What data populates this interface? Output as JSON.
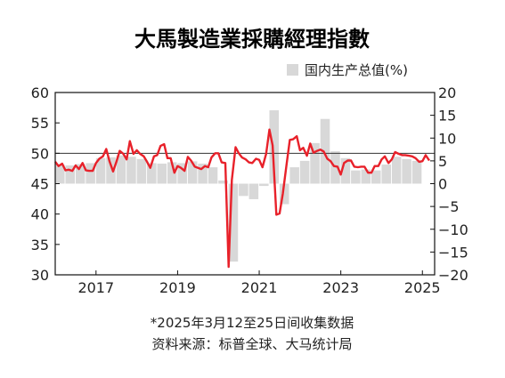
{
  "chart_data": {
    "type": "bar+line",
    "title": "大馬製造業採購經理指數",
    "left_axis": {
      "ylim": [
        30,
        60
      ],
      "ticks": [
        30,
        35,
        40,
        45,
        50,
        55,
        60
      ]
    },
    "right_axis": {
      "ylim": [
        -20,
        20
      ],
      "ticks": [
        -20,
        -15,
        -10,
        -5,
        0,
        5,
        10,
        15,
        20
      ],
      "tick_labels": [
        "−20",
        "−15",
        "−10",
        "−5",
        "0",
        "5",
        "10",
        "15",
        "20"
      ]
    },
    "x_tick_labels": [
      "2017",
      "2019",
      "2021",
      "2023",
      "2025"
    ],
    "x_tick_years": [
      2017,
      2019,
      2021,
      2023,
      2025
    ],
    "x_range": [
      2016.0,
      2025.3
    ],
    "reference_line": {
      "axis": "left",
      "value": 50
    },
    "bar_series": {
      "name": "国内生产总值(%)",
      "color": "#d8d8d8",
      "points": [
        {
          "x": 2016.0,
          "y": 4.2
        },
        {
          "x": 2016.25,
          "y": 4.0
        },
        {
          "x": 2016.5,
          "y": 4.3
        },
        {
          "x": 2016.75,
          "y": 4.5
        },
        {
          "x": 2017.0,
          "y": 5.6
        },
        {
          "x": 2017.25,
          "y": 5.8
        },
        {
          "x": 2017.5,
          "y": 6.2
        },
        {
          "x": 2017.75,
          "y": 5.9
        },
        {
          "x": 2018.0,
          "y": 5.4
        },
        {
          "x": 2018.25,
          "y": 4.5
        },
        {
          "x": 2018.5,
          "y": 4.4
        },
        {
          "x": 2018.75,
          "y": 4.7
        },
        {
          "x": 2019.0,
          "y": 4.5
        },
        {
          "x": 2019.25,
          "y": 4.9
        },
        {
          "x": 2019.5,
          "y": 4.4
        },
        {
          "x": 2019.75,
          "y": 3.6
        },
        {
          "x": 2020.0,
          "y": 0.7
        },
        {
          "x": 2020.25,
          "y": -17.1
        },
        {
          "x": 2020.5,
          "y": -2.7
        },
        {
          "x": 2020.75,
          "y": -3.4
        },
        {
          "x": 2021.0,
          "y": -0.5
        },
        {
          "x": 2021.25,
          "y": 16.1
        },
        {
          "x": 2021.5,
          "y": -4.5
        },
        {
          "x": 2021.75,
          "y": 3.6
        },
        {
          "x": 2022.0,
          "y": 5.0
        },
        {
          "x": 2022.25,
          "y": 8.9
        },
        {
          "x": 2022.5,
          "y": 14.2
        },
        {
          "x": 2022.75,
          "y": 7.1
        },
        {
          "x": 2023.0,
          "y": 5.6
        },
        {
          "x": 2023.25,
          "y": 2.9
        },
        {
          "x": 2023.5,
          "y": 3.1
        },
        {
          "x": 2023.75,
          "y": 2.9
        },
        {
          "x": 2024.0,
          "y": 4.2
        },
        {
          "x": 2024.25,
          "y": 5.9
        },
        {
          "x": 2024.5,
          "y": 5.4
        },
        {
          "x": 2024.75,
          "y": 5.0
        }
      ]
    },
    "line_series": {
      "name": "PMI",
      "color": "#e8212a",
      "points": [
        [
          2016.0,
          48.6
        ],
        [
          2016.08,
          47.9
        ],
        [
          2016.17,
          48.3
        ],
        [
          2016.25,
          47.2
        ],
        [
          2016.33,
          47.3
        ],
        [
          2016.42,
          47.1
        ],
        [
          2016.5,
          48.0
        ],
        [
          2016.58,
          47.4
        ],
        [
          2016.67,
          48.4
        ],
        [
          2016.75,
          47.2
        ],
        [
          2016.83,
          47.1
        ],
        [
          2016.92,
          47.1
        ],
        [
          2017.0,
          48.4
        ],
        [
          2017.08,
          49.1
        ],
        [
          2017.17,
          49.5
        ],
        [
          2017.25,
          50.7
        ],
        [
          2017.33,
          48.7
        ],
        [
          2017.42,
          47.0
        ],
        [
          2017.5,
          48.6
        ],
        [
          2017.58,
          50.4
        ],
        [
          2017.67,
          49.9
        ],
        [
          2017.75,
          49.0
        ],
        [
          2017.83,
          52.0
        ],
        [
          2017.92,
          49.9
        ],
        [
          2018.0,
          50.5
        ],
        [
          2018.08,
          49.9
        ],
        [
          2018.17,
          49.5
        ],
        [
          2018.25,
          48.6
        ],
        [
          2018.33,
          47.6
        ],
        [
          2018.42,
          49.5
        ],
        [
          2018.5,
          49.7
        ],
        [
          2018.58,
          51.2
        ],
        [
          2018.67,
          51.5
        ],
        [
          2018.75,
          49.2
        ],
        [
          2018.83,
          49.2
        ],
        [
          2018.92,
          46.8
        ],
        [
          2019.0,
          47.9
        ],
        [
          2019.08,
          47.6
        ],
        [
          2019.17,
          47.1
        ],
        [
          2019.25,
          49.4
        ],
        [
          2019.33,
          48.8
        ],
        [
          2019.42,
          47.8
        ],
        [
          2019.5,
          47.6
        ],
        [
          2019.58,
          47.4
        ],
        [
          2019.67,
          47.9
        ],
        [
          2019.75,
          47.7
        ],
        [
          2019.83,
          49.3
        ],
        [
          2019.92,
          50.0
        ],
        [
          2020.0,
          50.0
        ],
        [
          2020.08,
          48.5
        ],
        [
          2020.17,
          48.4
        ],
        [
          2020.25,
          31.3
        ],
        [
          2020.33,
          45.6
        ],
        [
          2020.42,
          51.0
        ],
        [
          2020.5,
          50.0
        ],
        [
          2020.58,
          49.3
        ],
        [
          2020.67,
          49.0
        ],
        [
          2020.75,
          48.5
        ],
        [
          2020.83,
          48.4
        ],
        [
          2020.92,
          49.1
        ],
        [
          2021.0,
          48.9
        ],
        [
          2021.08,
          47.7
        ],
        [
          2021.17,
          49.9
        ],
        [
          2021.25,
          53.9
        ],
        [
          2021.33,
          51.3
        ],
        [
          2021.42,
          39.9
        ],
        [
          2021.5,
          40.1
        ],
        [
          2021.58,
          43.4
        ],
        [
          2021.67,
          48.1
        ],
        [
          2021.75,
          52.2
        ],
        [
          2021.83,
          52.3
        ],
        [
          2021.92,
          52.8
        ],
        [
          2022.0,
          50.5
        ],
        [
          2022.08,
          50.9
        ],
        [
          2022.17,
          49.6
        ],
        [
          2022.25,
          51.6
        ],
        [
          2022.33,
          50.1
        ],
        [
          2022.42,
          50.4
        ],
        [
          2022.5,
          50.6
        ],
        [
          2022.58,
          50.3
        ],
        [
          2022.67,
          49.1
        ],
        [
          2022.75,
          48.7
        ],
        [
          2022.83,
          47.9
        ],
        [
          2022.92,
          47.8
        ],
        [
          2023.0,
          46.5
        ],
        [
          2023.08,
          48.4
        ],
        [
          2023.17,
          48.8
        ],
        [
          2023.25,
          48.8
        ],
        [
          2023.33,
          47.8
        ],
        [
          2023.42,
          47.7
        ],
        [
          2023.5,
          47.8
        ],
        [
          2023.58,
          47.8
        ],
        [
          2023.67,
          46.8
        ],
        [
          2023.75,
          46.8
        ],
        [
          2023.83,
          47.9
        ],
        [
          2023.92,
          47.9
        ],
        [
          2024.0,
          49.0
        ],
        [
          2024.08,
          49.5
        ],
        [
          2024.17,
          48.4
        ],
        [
          2024.25,
          49.0
        ],
        [
          2024.33,
          50.2
        ],
        [
          2024.42,
          49.9
        ],
        [
          2024.5,
          49.7
        ],
        [
          2024.58,
          49.7
        ],
        [
          2024.67,
          49.6
        ],
        [
          2024.75,
          49.5
        ],
        [
          2024.83,
          49.2
        ],
        [
          2024.92,
          48.6
        ],
        [
          2025.0,
          48.7
        ],
        [
          2025.08,
          49.7
        ],
        [
          2025.17,
          48.8
        ]
      ]
    },
    "legend": {
      "label": "国内生产总值(%)",
      "placement": "top-right"
    },
    "notes": [
      "*2025年3月12至25日间收集数据",
      "资料来源：标普全球、大马统计局"
    ]
  },
  "colors": {
    "line": "#e8212a",
    "bars": "#d8d8d8",
    "frame": "#111111"
  }
}
